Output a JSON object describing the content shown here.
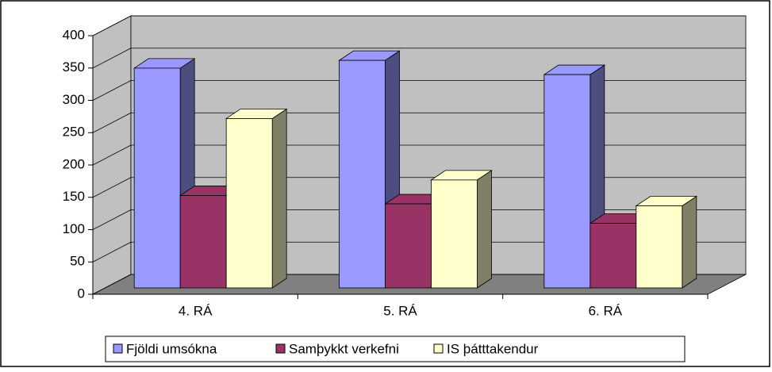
{
  "chart_data": {
    "type": "bar3d",
    "categories": [
      "4. RÁ",
      "5. RÁ",
      "6. RÁ"
    ],
    "series": [
      {
        "name": "Fjöldi umsókna",
        "color": "#9999ff",
        "values": [
          340,
          352,
          330
        ]
      },
      {
        "name": "Samþykkt verkefni",
        "color": "#993366",
        "values": [
          143,
          130,
          100
        ]
      },
      {
        "name": "IS þátttakendur",
        "color": "#ffffcc",
        "values": [
          262,
          167,
          127
        ]
      }
    ],
    "ylim": [
      0,
      400
    ],
    "yticks": [
      0,
      50,
      100,
      150,
      200,
      250,
      300,
      350,
      400
    ],
    "grid": true,
    "legend": "bottom"
  }
}
